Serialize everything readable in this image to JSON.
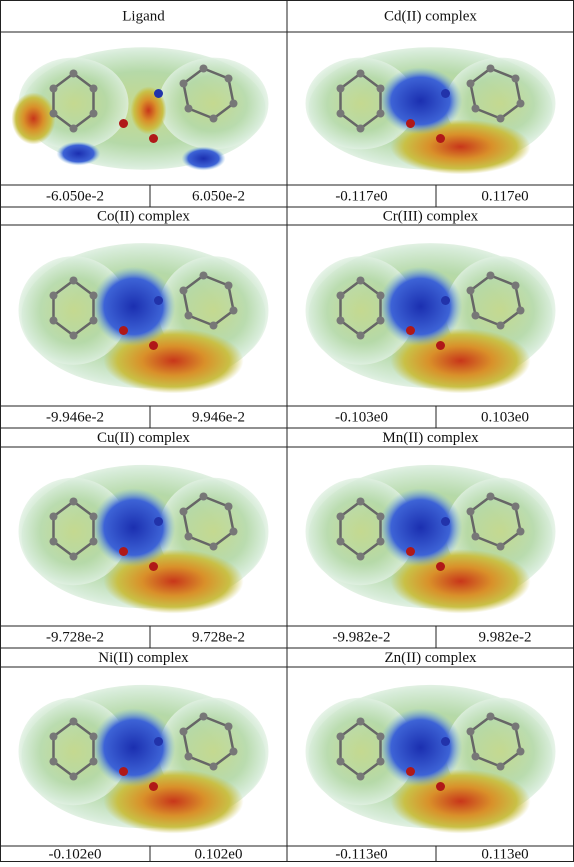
{
  "panels": [
    {
      "title": "Ligand",
      "min": "-6.050e-2",
      "max": "6.050e-2"
    },
    {
      "title": "Cd(II) complex",
      "min": "-0.117e0",
      "max": "0.117e0"
    },
    {
      "title": "Co(II) complex",
      "min": "-9.946e-2",
      "max": "9.946e-2"
    },
    {
      "title": "Cr(III) complex",
      "min": "-0.103e0",
      "max": "0.103e0"
    },
    {
      "title": "Cu(II) complex",
      "min": "-9.728e-2",
      "max": "9.728e-2"
    },
    {
      "title": "Mn(II) complex",
      "min": "-9.982e-2",
      "max": "9.982e-2"
    },
    {
      "title": "Ni(II) complex",
      "min": "-0.102e0",
      "max": "0.102e0"
    },
    {
      "title": "Zn(II) complex",
      "min": "-0.113e0",
      "max": "0.113e0"
    }
  ]
}
